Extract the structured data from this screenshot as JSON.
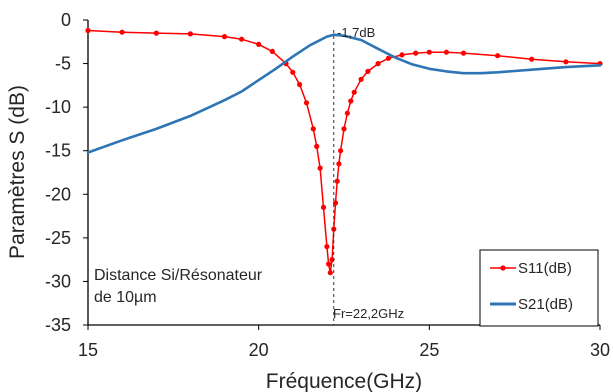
{
  "chart_data": {
    "type": "line",
    "xlabel": "Fréquence(GHz)",
    "ylabel": "Paramètres S (dB)",
    "xlim": [
      15,
      30
    ],
    "ylim": [
      -35,
      0
    ],
    "x_ticks": [
      "15",
      "20",
      "25",
      "30"
    ],
    "y_ticks": [
      "0",
      "-5",
      "-10",
      "-15",
      "-20",
      "-25",
      "-30",
      "-35"
    ],
    "grid": false,
    "legend": {
      "placement": "bottom-right"
    },
    "series": [
      {
        "name": "S11(dB)",
        "color": "#ff0000",
        "marker": "circle",
        "x": [
          15.0,
          16.0,
          17.0,
          18.0,
          19.0,
          19.5,
          20.0,
          20.4,
          20.8,
          21.0,
          21.2,
          21.4,
          21.6,
          21.7,
          21.8,
          21.9,
          22.0,
          22.05,
          22.1,
          22.15,
          22.2,
          22.25,
          22.3,
          22.35,
          22.4,
          22.5,
          22.6,
          22.7,
          22.8,
          23.0,
          23.2,
          23.5,
          23.8,
          24.2,
          24.6,
          25.0,
          25.5,
          26.0,
          27.0,
          28.0,
          29.0,
          30.0
        ],
        "y": [
          -1.2,
          -1.4,
          -1.5,
          -1.6,
          -1.9,
          -2.2,
          -2.8,
          -3.6,
          -5.0,
          -6.0,
          -7.4,
          -9.5,
          -12.5,
          -14.5,
          -17.0,
          -21.5,
          -26.0,
          -28.0,
          -29.0,
          -27.5,
          -24.0,
          -21.0,
          -18.5,
          -16.5,
          -15.0,
          -12.5,
          -10.7,
          -9.3,
          -8.3,
          -6.8,
          -5.9,
          -5.0,
          -4.4,
          -4.0,
          -3.8,
          -3.7,
          -3.7,
          -3.8,
          -4.1,
          -4.5,
          -4.8,
          -5.0
        ]
      },
      {
        "name": "S21(dB)",
        "color": "#2e75b6",
        "marker": "none",
        "x": [
          15.0,
          16.0,
          17.0,
          18.0,
          19.0,
          19.5,
          20.0,
          20.5,
          21.0,
          21.5,
          22.0,
          22.2,
          22.5,
          23.0,
          23.5,
          24.0,
          24.5,
          25.0,
          25.5,
          26.0,
          26.5,
          27.0,
          28.0,
          29.0,
          30.0
        ],
        "y": [
          -15.2,
          -13.8,
          -12.5,
          -11.0,
          -9.2,
          -8.2,
          -6.9,
          -5.6,
          -4.2,
          -2.9,
          -1.9,
          -1.7,
          -1.8,
          -2.3,
          -3.3,
          -4.3,
          -5.1,
          -5.6,
          -5.9,
          -6.1,
          -6.1,
          -6.0,
          -5.7,
          -5.4,
          -5.2
        ]
      }
    ],
    "annotations": {
      "peak": "-1,7dB",
      "resonance": "Fr=22,2GHz",
      "resonance_x": 22.2,
      "note_line1": "Distance Si/Résonateur",
      "note_line2": "de 10µm"
    }
  }
}
